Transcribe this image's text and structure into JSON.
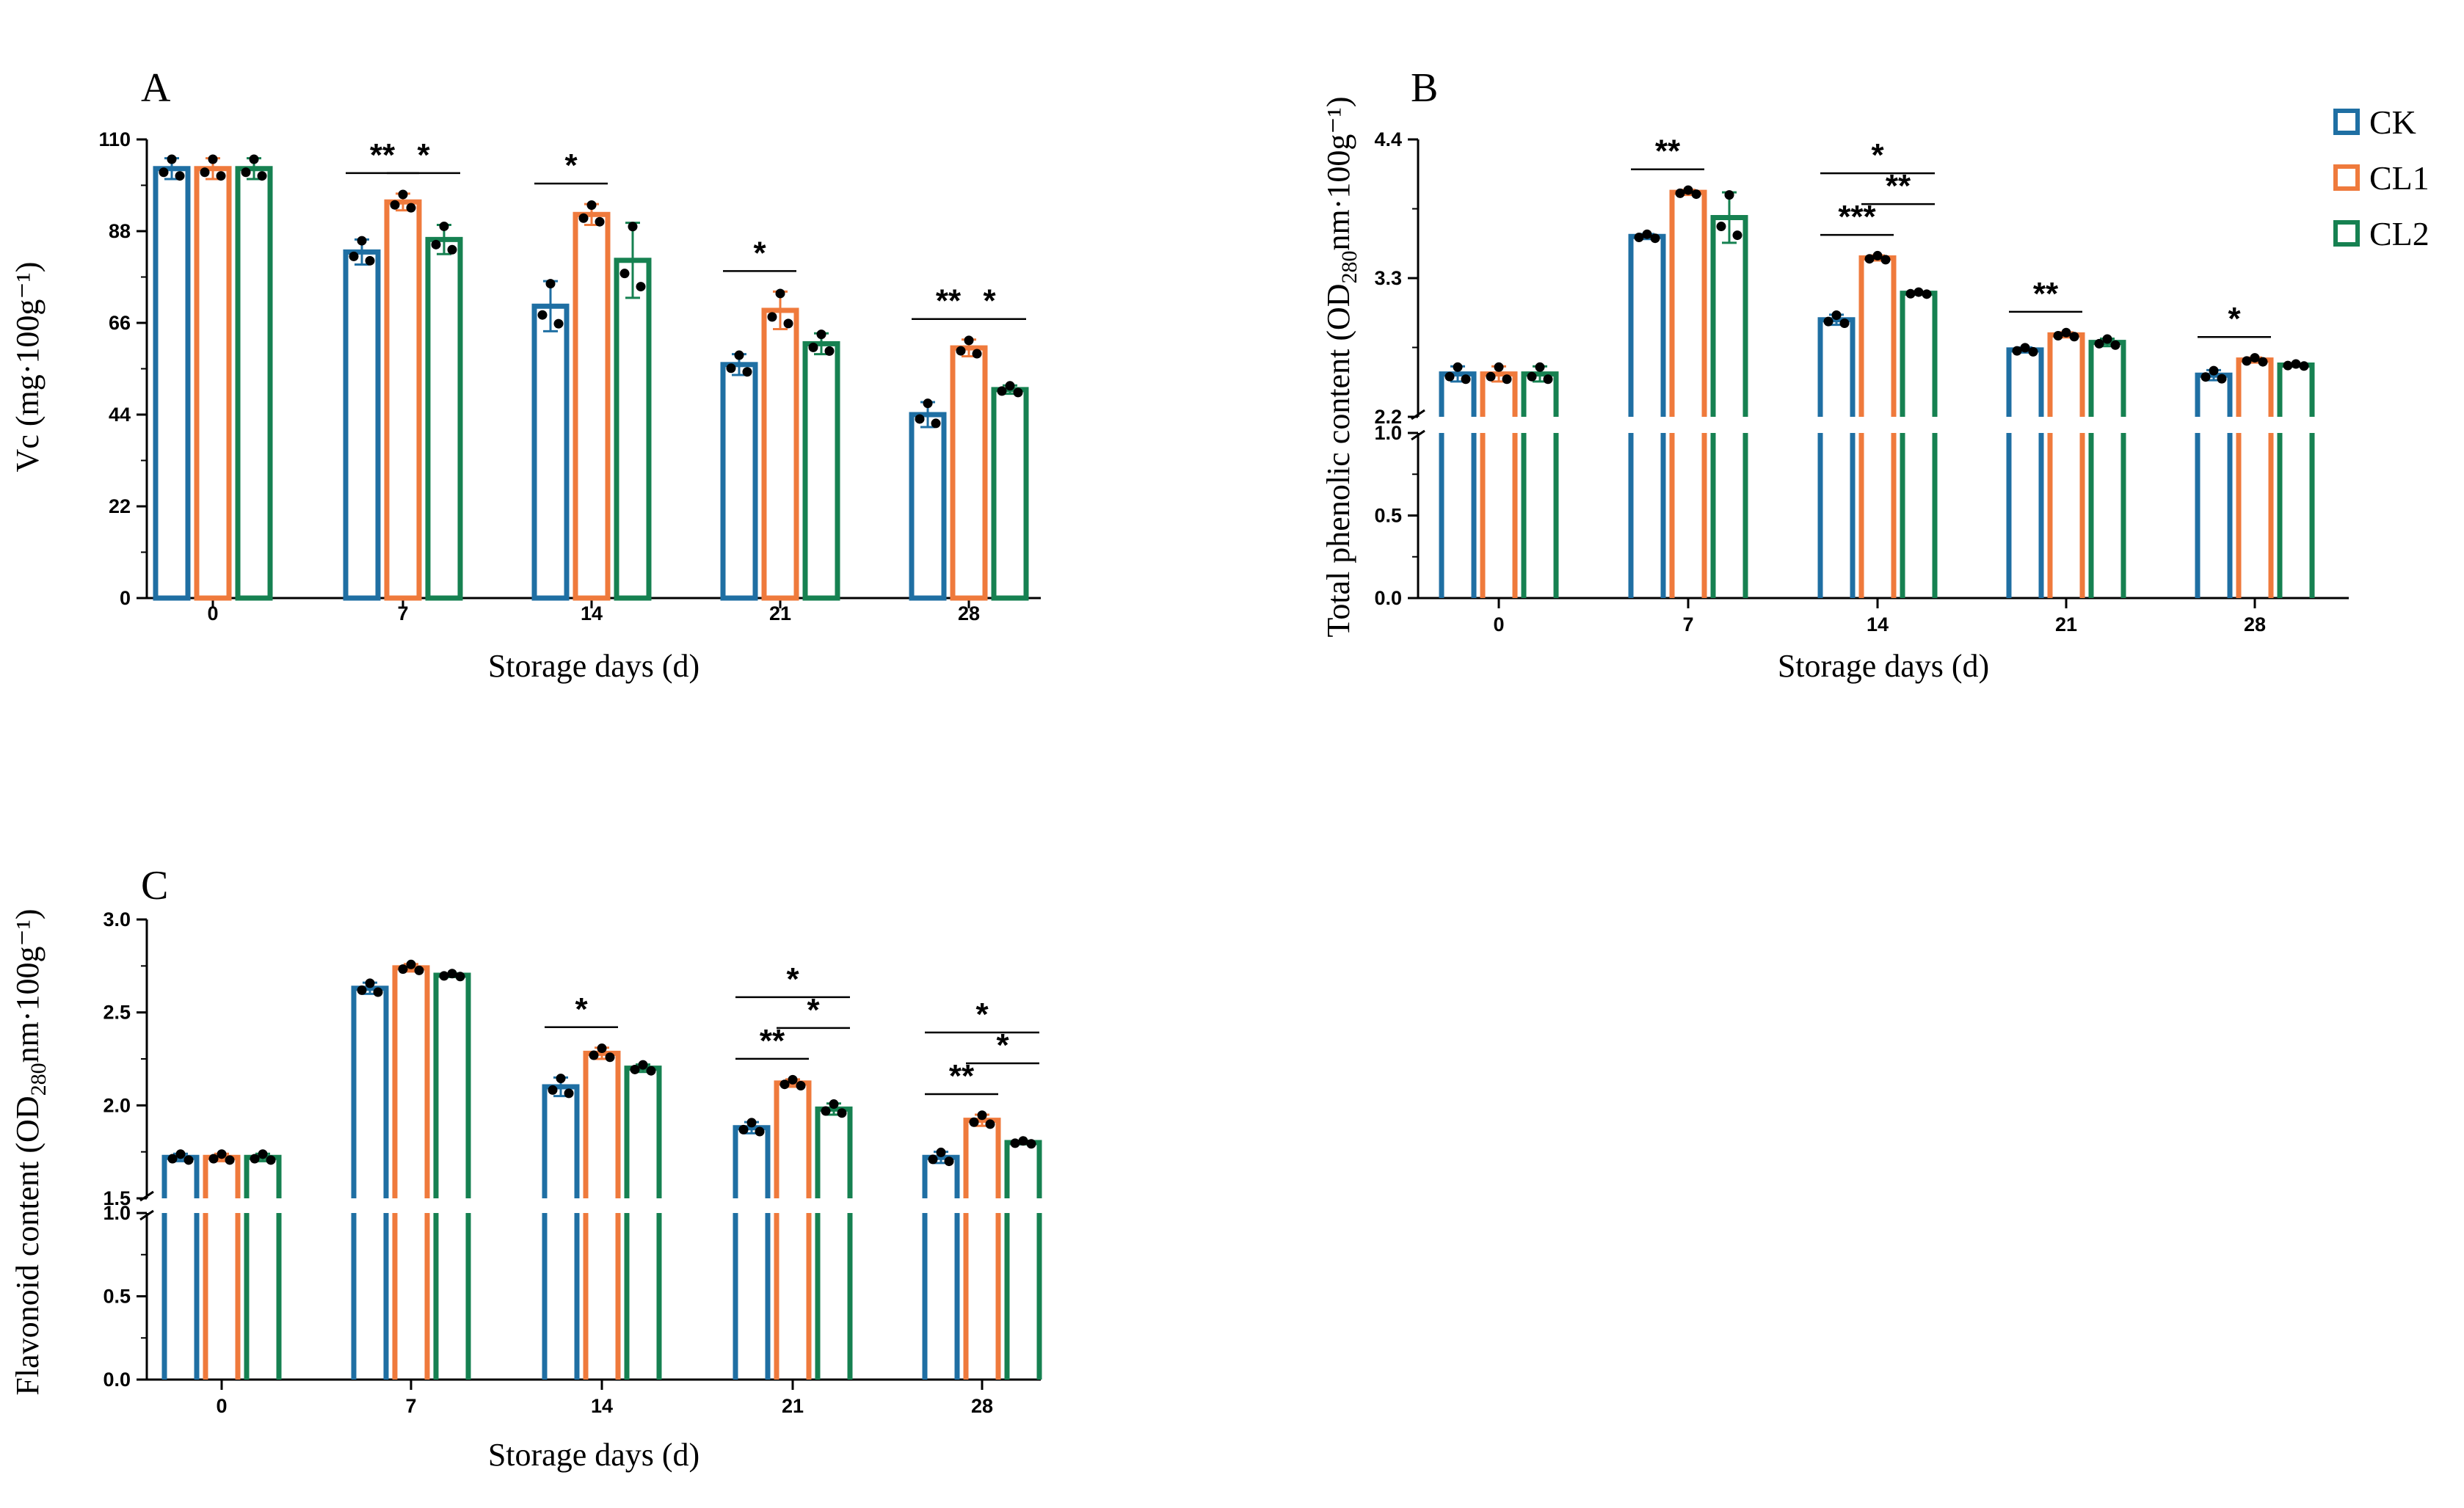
{
  "colors": {
    "CK": "#1f6fa3",
    "CL1": "#ef7a3c",
    "CL2": "#168151",
    "dot": "#000000"
  },
  "legend": [
    {
      "key": "CK",
      "label": "CK"
    },
    {
      "key": "CL1",
      "label": "CL1"
    },
    {
      "key": "CL2",
      "label": "CL2"
    }
  ],
  "chart_data": [
    {
      "id": "A",
      "type": "bar",
      "panel_label": "A",
      "xlabel": "Storage days (d)",
      "ylabel": "Vc (mg·100g⁻¹)",
      "categories": [
        "0",
        "7",
        "14",
        "21",
        "28"
      ],
      "ylim": [
        0,
        110
      ],
      "yticks": [
        "0",
        "22",
        "44",
        "66",
        "88",
        "110"
      ],
      "series": [
        {
          "name": "CK",
          "values": [
            103,
            83,
            70,
            56,
            44
          ],
          "err": [
            2.5,
            3,
            6,
            2.5,
            3
          ]
        },
        {
          "name": "CL1",
          "values": [
            103,
            95,
            92,
            69,
            60
          ],
          "err": [
            2.5,
            2,
            2.5,
            4.5,
            2
          ]
        },
        {
          "name": "CL2",
          "values": [
            103,
            86,
            81,
            61,
            50
          ],
          "err": [
            2.5,
            3.5,
            9,
            2.5,
            1
          ]
        }
      ],
      "significance": [
        {
          "cat": 1,
          "pair": [
            0,
            1
          ],
          "label": "**",
          "level": 0
        },
        {
          "cat": 1,
          "pair": [
            1,
            2
          ],
          "label": "*",
          "level": 0
        },
        {
          "cat": 2,
          "pair": [
            0,
            1
          ],
          "label": "*",
          "level": 0
        },
        {
          "cat": 3,
          "pair": [
            0,
            1
          ],
          "label": "*",
          "level": 0
        },
        {
          "cat": 4,
          "pair": [
            0,
            1
          ],
          "label": "**",
          "level": 0
        },
        {
          "cat": 4,
          "pair": [
            1,
            2
          ],
          "label": "*",
          "level": 0
        }
      ]
    },
    {
      "id": "B",
      "type": "bar",
      "panel_label": "B",
      "xlabel": "Storage days (d)",
      "ylabel": "Total phenolic content (OD",
      "ylabel_sub": "280",
      "ylabel_rest": "nm·100g⁻¹)",
      "categories": [
        "0",
        "7",
        "14",
        "21",
        "28"
      ],
      "axis_break": {
        "lower": [
          0,
          1.0
        ],
        "upper": [
          2.2,
          4.4
        ]
      },
      "yticks_lower": [
        "0.0",
        "0.5",
        "1.0"
      ],
      "yticks_upper": [
        "2.2",
        "3.3",
        "4.4"
      ],
      "series": [
        {
          "name": "CK",
          "values": [
            2.54,
            3.63,
            2.97,
            2.73,
            2.53
          ],
          "err": [
            0.06,
            0.02,
            0.04,
            0.02,
            0.04
          ]
        },
        {
          "name": "CL1",
          "values": [
            2.54,
            3.98,
            3.46,
            2.85,
            2.65
          ],
          "err": [
            0.06,
            0.02,
            0.02,
            0.02,
            0.02
          ]
        },
        {
          "name": "CL2",
          "values": [
            2.54,
            3.78,
            3.18,
            2.79,
            2.61
          ],
          "err": [
            0.06,
            0.2,
            0.01,
            0.03,
            0.01
          ]
        }
      ],
      "significance": [
        {
          "cat": 1,
          "pair": [
            0,
            1
          ],
          "label": "**",
          "level": 0
        },
        {
          "cat": 2,
          "pair": [
            0,
            1
          ],
          "label": "***",
          "level": 0
        },
        {
          "cat": 2,
          "pair": [
            1,
            2
          ],
          "label": "**",
          "level": 1
        },
        {
          "cat": 2,
          "pair": [
            0,
            2
          ],
          "label": "*",
          "level": 2
        },
        {
          "cat": 3,
          "pair": [
            0,
            1
          ],
          "label": "**",
          "level": 0
        },
        {
          "cat": 4,
          "pair": [
            0,
            1
          ],
          "label": "*",
          "level": 0
        }
      ]
    },
    {
      "id": "C",
      "type": "bar",
      "panel_label": "C",
      "xlabel": "Storage days (d)",
      "ylabel": "Flavonoid content (OD",
      "ylabel_sub": "280",
      "ylabel_rest": "nm·100g⁻¹)",
      "categories": [
        "0",
        "7",
        "14",
        "21",
        "28"
      ],
      "axis_break": {
        "lower": [
          0,
          1.0
        ],
        "upper": [
          1.5,
          3.0
        ]
      },
      "yticks_lower": [
        "0.0",
        "0.5",
        "1.0"
      ],
      "yticks_upper": [
        "1.5",
        "2.0",
        "2.5",
        "3.0"
      ],
      "series": [
        {
          "name": "CK",
          "values": [
            1.72,
            2.63,
            2.1,
            1.88,
            1.72
          ],
          "err": [
            0.02,
            0.03,
            0.05,
            0.03,
            0.03
          ]
        },
        {
          "name": "CL1",
          "values": [
            1.72,
            2.74,
            2.28,
            2.12,
            1.92
          ],
          "err": [
            0.02,
            0.02,
            0.03,
            0.02,
            0.03
          ]
        },
        {
          "name": "CL2",
          "values": [
            1.72,
            2.7,
            2.2,
            1.98,
            1.8
          ],
          "err": [
            0.02,
            0.01,
            0.02,
            0.03,
            0.01
          ]
        }
      ],
      "significance": [
        {
          "cat": 2,
          "pair": [
            0,
            1
          ],
          "label": "*",
          "level": 0
        },
        {
          "cat": 3,
          "pair": [
            0,
            1
          ],
          "label": "**",
          "level": 0
        },
        {
          "cat": 3,
          "pair": [
            1,
            2
          ],
          "label": "*",
          "level": 1
        },
        {
          "cat": 3,
          "pair": [
            0,
            2
          ],
          "label": "*",
          "level": 2
        },
        {
          "cat": 4,
          "pair": [
            0,
            1
          ],
          "label": "**",
          "level": 0
        },
        {
          "cat": 4,
          "pair": [
            1,
            2
          ],
          "label": "*",
          "level": 1
        },
        {
          "cat": 4,
          "pair": [
            0,
            2
          ],
          "label": "*",
          "level": 2
        }
      ]
    }
  ]
}
